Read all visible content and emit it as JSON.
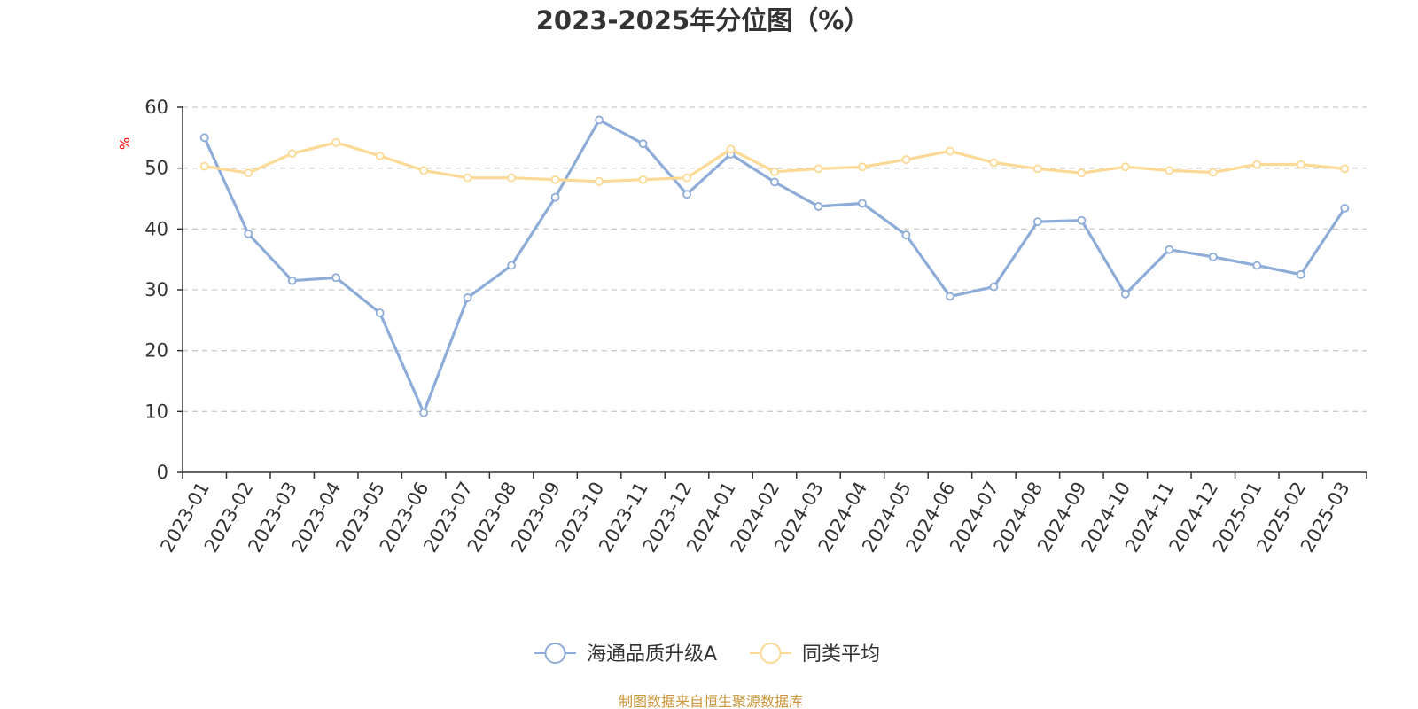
{
  "chart_data": {
    "type": "line",
    "title": "2023-2025年分位图（%）",
    "y_unit": "%",
    "ylim": [
      0,
      60
    ],
    "yticks": [
      0,
      10,
      20,
      30,
      40,
      50,
      60
    ],
    "grid": true,
    "legend_position": "bottom-center",
    "categories": [
      "2023-01",
      "2023-02",
      "2023-03",
      "2023-04",
      "2023-05",
      "2023-06",
      "2023-07",
      "2023-08",
      "2023-09",
      "2023-10",
      "2023-11",
      "2023-12",
      "2024-01",
      "2024-02",
      "2024-03",
      "2024-04",
      "2024-05",
      "2024-06",
      "2024-07",
      "2024-08",
      "2024-09",
      "2024-10",
      "2024-11",
      "2024-12",
      "2025-01",
      "2025-02",
      "2025-03"
    ],
    "series": [
      {
        "name": "海通品质升级A",
        "color": "#8eacd8",
        "values": [
          55.0,
          39.2,
          31.5,
          32.0,
          26.2,
          9.8,
          28.7,
          34.0,
          45.2,
          57.9,
          54.0,
          45.7,
          52.3,
          47.7,
          43.7,
          44.2,
          39.0,
          28.9,
          30.5,
          41.2,
          41.4,
          29.3,
          36.6,
          35.4,
          34.0,
          32.5,
          43.4
        ]
      },
      {
        "name": "同类平均",
        "color": "#fcd994",
        "values": [
          50.3,
          49.2,
          52.4,
          54.2,
          52.0,
          49.6,
          48.4,
          48.4,
          48.1,
          47.8,
          48.1,
          48.4,
          53.1,
          49.4,
          49.9,
          50.2,
          51.4,
          52.8,
          50.9,
          49.9,
          49.2,
          50.2,
          49.6,
          49.3,
          50.6,
          50.6,
          49.9
        ]
      }
    ],
    "source": "制图数据来自恒生聚源数据库"
  }
}
